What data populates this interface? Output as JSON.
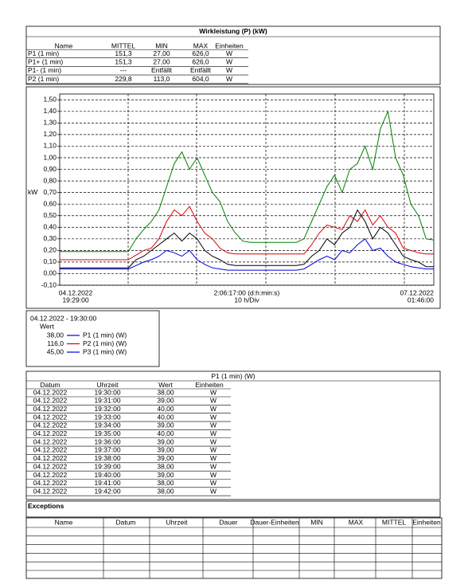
{
  "header": {
    "title": "Wirkleistung (P) (kW)"
  },
  "summary_table": {
    "columns": [
      "Name",
      "MITTEL",
      "MIN",
      "MAX",
      "Einheiten"
    ],
    "rows": [
      [
        "P1 (1 min)",
        "151,3",
        "27,00",
        "626,0",
        "W"
      ],
      [
        "P1+ (1 min)",
        "151,3",
        "27,00",
        "626,0",
        "W"
      ],
      [
        "P1- (1 min)",
        "---",
        "Entfällt",
        "Entfällt",
        "W"
      ],
      [
        "P2 (1 min)",
        "229,8",
        "113,0",
        "604,0",
        "W"
      ]
    ]
  },
  "chart_data": {
    "type": "line",
    "ylabel": "kW",
    "ylim": [
      -0.1,
      1.55
    ],
    "yticks": [
      {
        "value": 1.5,
        "label": "1,50"
      },
      {
        "value": 1.4,
        "label": "1,40"
      },
      {
        "value": 1.3,
        "label": "1,30"
      },
      {
        "value": 1.2,
        "label": "1,20"
      },
      {
        "value": 1.1,
        "label": "1,10"
      },
      {
        "value": 1.0,
        "label": "1,00"
      },
      {
        "value": 0.9,
        "label": "0,90"
      },
      {
        "value": 0.8,
        "label": "0,80"
      },
      {
        "value": 0.7,
        "label": "0,70"
      },
      {
        "value": 0.6,
        "label": "0,60"
      },
      {
        "value": 0.5,
        "label": "0,50"
      },
      {
        "value": 0.4,
        "label": "0,40"
      },
      {
        "value": 0.3,
        "label": "0,30"
      },
      {
        "value": 0.2,
        "label": "0,20"
      },
      {
        "value": 0.1,
        "label": "0,10"
      },
      {
        "value": 0,
        "label": "0,00"
      },
      {
        "value": -0.1,
        "label": "-0,10"
      }
    ],
    "grid": true,
    "series": [
      {
        "color": "#008000",
        "values": [
          0.19,
          0.19,
          0.19,
          0.19,
          0.19,
          0.19,
          0.19,
          0.19,
          0.19,
          0.19,
          0.3,
          0.38,
          0.45,
          0.55,
          0.75,
          0.95,
          1.05,
          0.9,
          1.0,
          0.85,
          0.7,
          0.62,
          0.45,
          0.35,
          0.28,
          0.27,
          0.27,
          0.27,
          0.27,
          0.27,
          0.27,
          0.27,
          0.3,
          0.45,
          0.6,
          0.75,
          0.85,
          0.7,
          0.9,
          0.95,
          1.1,
          0.9,
          1.25,
          1.4,
          1.0,
          0.85,
          0.6,
          0.5,
          0.3,
          0.29
        ]
      },
      {
        "color": "#e00000",
        "values": [
          0.12,
          0.12,
          0.12,
          0.12,
          0.12,
          0.12,
          0.12,
          0.12,
          0.12,
          0.12,
          0.16,
          0.2,
          0.22,
          0.3,
          0.45,
          0.55,
          0.5,
          0.58,
          0.45,
          0.35,
          0.3,
          0.22,
          0.18,
          0.17,
          0.17,
          0.17,
          0.17,
          0.17,
          0.17,
          0.17,
          0.17,
          0.17,
          0.17,
          0.25,
          0.35,
          0.42,
          0.4,
          0.38,
          0.5,
          0.45,
          0.55,
          0.42,
          0.5,
          0.4,
          0.35,
          0.22,
          0.2,
          0.18,
          0.17,
          0.17
        ]
      },
      {
        "color": "#000000",
        "values": [
          0.05,
          0.05,
          0.05,
          0.05,
          0.05,
          0.05,
          0.05,
          0.05,
          0.05,
          0.05,
          0.12,
          0.15,
          0.2,
          0.25,
          0.3,
          0.35,
          0.28,
          0.35,
          0.3,
          0.2,
          0.15,
          0.12,
          0.08,
          0.07,
          0.07,
          0.07,
          0.07,
          0.07,
          0.07,
          0.07,
          0.07,
          0.07,
          0.08,
          0.15,
          0.2,
          0.3,
          0.25,
          0.35,
          0.4,
          0.55,
          0.45,
          0.3,
          0.4,
          0.35,
          0.25,
          0.15,
          0.12,
          0.1,
          0.06,
          0.06
        ]
      },
      {
        "color": "#0000e0",
        "values": [
          0.04,
          0.04,
          0.04,
          0.04,
          0.04,
          0.04,
          0.04,
          0.04,
          0.04,
          0.04,
          0.07,
          0.1,
          0.12,
          0.15,
          0.2,
          0.18,
          0.15,
          0.2,
          0.12,
          0.08,
          0.05,
          0.04,
          0.03,
          0.03,
          0.03,
          0.03,
          0.03,
          0.03,
          0.03,
          0.03,
          0.03,
          0.03,
          0.04,
          0.08,
          0.12,
          0.15,
          0.12,
          0.2,
          0.18,
          0.25,
          0.3,
          0.2,
          0.22,
          0.15,
          0.1,
          0.08,
          0.06,
          0.05,
          0.04,
          0.04
        ]
      }
    ],
    "x_labels": [
      {
        "date": "04.12.2022",
        "time": "19:29:00"
      },
      {
        "span": "2:06:17:00 (d:h:min:s)",
        "div": "10 h/Div"
      },
      {
        "date": "07.12.2022",
        "time": "01:46:00"
      }
    ]
  },
  "legend": {
    "timestamp": "04.12.2022 - 19:30:00",
    "heading": "Wert",
    "entries": [
      {
        "value": "38,00",
        "color": "#0000e0",
        "label": "P1 (1 min) (W)"
      },
      {
        "value": "116,0",
        "color": "#e00000",
        "label": "P2 (1 min) (W)"
      },
      {
        "value": "45,00",
        "color": "#0000e0",
        "label": "P3 (1 min) (W)"
      }
    ]
  },
  "data_table": {
    "title": "P1 (1 min) (W)",
    "columns": [
      "Datum",
      "Uhrzeit",
      "Wert",
      "Einheiten"
    ],
    "rows": [
      [
        "04.12.2022",
        "19:30:00",
        "38,00",
        "W"
      ],
      [
        "04.12.2022",
        "19:31:00",
        "39,00",
        "W"
      ],
      [
        "04.12.2022",
        "19:32:00",
        "40,00",
        "W"
      ],
      [
        "04.12.2022",
        "19:33:00",
        "40,00",
        "W"
      ],
      [
        "04.12.2022",
        "19:34:00",
        "39,00",
        "W"
      ],
      [
        "04.12.2022",
        "19:35:00",
        "40,00",
        "W"
      ],
      [
        "04.12.2022",
        "19:36:00",
        "39,00",
        "W"
      ],
      [
        "04.12.2022",
        "19:37:00",
        "39,00",
        "W"
      ],
      [
        "04.12.2022",
        "19:38:00",
        "39,00",
        "W"
      ],
      [
        "04.12.2022",
        "19:39:00",
        "38,00",
        "W"
      ],
      [
        "04.12.2022",
        "19:40:00",
        "39,00",
        "W"
      ],
      [
        "04.12.2022",
        "19:41:00",
        "38,00",
        "W"
      ],
      [
        "04.12.2022",
        "19:42:00",
        "38,00",
        "W"
      ]
    ]
  },
  "exceptions": {
    "title": "Exceptions",
    "columns": [
      "Name",
      "Datum",
      "Uhrzeit",
      "Dauer",
      "Dauer-Einheiten",
      "MIN",
      "MAX",
      "MITTEL",
      "Einheiten"
    ]
  }
}
